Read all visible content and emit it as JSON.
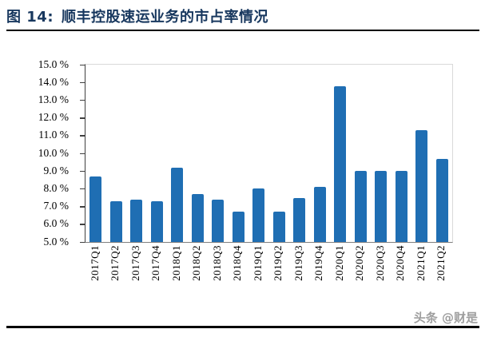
{
  "title": {
    "prefix": "图 14:",
    "text": "顺丰控股速运业务的市占率情况"
  },
  "watermark": "头条 @财是",
  "colors": {
    "bar": "#1F6EB3",
    "title": "#17375E",
    "rule": "#000000",
    "axis": "#404040",
    "plot_border": "#D9D9D9",
    "watermark": "#9E9E9E"
  },
  "chart_data": {
    "type": "bar",
    "title": "顺丰控股速运业务的市占率情况",
    "categories": [
      "2017Q1",
      "2017Q2",
      "2017Q3",
      "2017Q4",
      "2018Q1",
      "2018Q2",
      "2018Q3",
      "2018Q4",
      "2019Q1",
      "2019Q2",
      "2019Q3",
      "2019Q4",
      "2020Q1",
      "2020Q2",
      "2020Q3",
      "2020Q4",
      "2021Q1",
      "2021Q2"
    ],
    "values": [
      8.7,
      7.3,
      7.4,
      7.3,
      9.2,
      7.7,
      7.4,
      6.7,
      8.0,
      6.7,
      7.5,
      8.1,
      13.8,
      9.0,
      9.0,
      9.0,
      11.3,
      9.7
    ],
    "unit": "%",
    "xlabel": "",
    "ylabel": "",
    "ylim": [
      5.0,
      15.0
    ],
    "y_tick_step": 1.0,
    "y_tick_labels": [
      "15.0 %",
      "14.0 %",
      "13.0 %",
      "12.0 %",
      "11.0 %",
      "10.0 %",
      "9.0 %",
      "8.0 %",
      "7.0 %",
      "6.0 %",
      "5.0 %"
    ],
    "grid": false,
    "legend": "none",
    "bar_color": "#1F6EB3"
  }
}
